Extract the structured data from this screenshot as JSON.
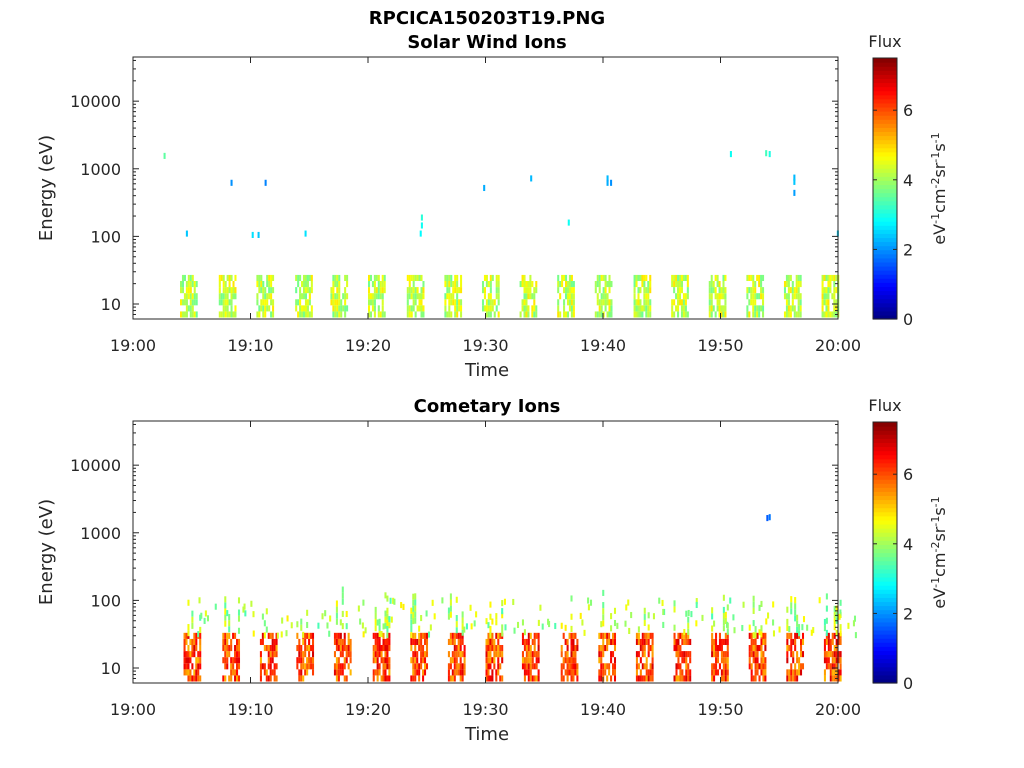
{
  "figure": {
    "main_title": "RPCICA150203T19.PNG"
  },
  "chart_data": [
    {
      "type": "heatmap",
      "title": "Solar Wind Ions",
      "xlabel": "Time",
      "ylabel": "Energy (eV)",
      "x_ticks": [
        "19:00",
        "19:10",
        "19:20",
        "19:30",
        "19:40",
        "19:50",
        "20:00"
      ],
      "xlim_minutes": [
        0,
        60
      ],
      "y_scale": "log",
      "y_ticks": [
        10,
        100,
        1000,
        10000
      ],
      "y_tick_labels": [
        "10",
        "100",
        "1000",
        "10000"
      ],
      "ylim": [
        6,
        45000
      ],
      "colorbar": {
        "label": "Flux",
        "unit_text": "eV-1cm-2sr-1s-1",
        "ticks": [
          0,
          2,
          4,
          6
        ],
        "range": [
          0,
          7.5
        ],
        "colormap": "jet"
      },
      "cells": [
        [
          2.6,
          1550,
          3.5
        ],
        [
          4.5,
          110,
          2.4
        ],
        [
          8.3,
          620,
          2.0
        ],
        [
          10.1,
          105,
          2.6
        ],
        [
          10.6,
          105,
          2.4
        ],
        [
          11.2,
          620,
          1.9
        ],
        [
          14.6,
          110,
          2.6
        ],
        [
          24.4,
          110,
          2.8
        ],
        [
          24.5,
          145,
          2.9
        ],
        [
          24.5,
          190,
          3.1
        ],
        [
          29.8,
          520,
          2.2
        ],
        [
          33.8,
          720,
          2.3
        ],
        [
          37.0,
          160,
          2.9
        ],
        [
          40.3,
          720,
          2.3
        ],
        [
          40.3,
          620,
          2.2
        ],
        [
          40.6,
          620,
          2.0
        ],
        [
          50.8,
          1650,
          2.9
        ],
        [
          53.8,
          1700,
          3.3
        ],
        [
          54.1,
          1650,
          3.0
        ],
        [
          56.2,
          740,
          2.3
        ],
        [
          56.2,
          640,
          2.4
        ],
        [
          56.2,
          440,
          2.1
        ],
        [
          59.9,
          110,
          2.5
        ]
      ],
      "bursts": [
        4.0,
        7.3,
        10.5,
        13.8,
        16.8,
        20.0,
        23.3,
        26.5,
        29.7,
        32.9,
        36.1,
        39.3,
        42.6,
        45.8,
        49.0,
        52.2,
        55.4,
        58.6
      ],
      "burst_energy_range": [
        7,
        28
      ],
      "burst_flux_range": [
        3.6,
        4.9
      ]
    },
    {
      "type": "heatmap",
      "title": "Cometary Ions",
      "xlabel": "Time",
      "ylabel": "Energy (eV)",
      "x_ticks": [
        "19:00",
        "19:10",
        "19:20",
        "19:30",
        "19:40",
        "19:50",
        "20:00"
      ],
      "xlim_minutes": [
        0,
        60
      ],
      "y_scale": "log",
      "y_ticks": [
        10,
        100,
        1000,
        10000
      ],
      "y_tick_labels": [
        "10",
        "100",
        "1000",
        "10000"
      ],
      "ylim": [
        6,
        45000
      ],
      "colorbar": {
        "label": "Flux",
        "unit_text": "eV-1cm-2sr-1s-1",
        "ticks": [
          0,
          2,
          4,
          6
        ],
        "range": [
          0,
          7.5
        ],
        "colormap": "jet"
      },
      "cells": [
        [
          53.9,
          1650,
          1.6
        ],
        [
          54.1,
          1700,
          1.8
        ]
      ],
      "bursts": [
        4.3,
        7.6,
        10.8,
        13.9,
        17.1,
        20.4,
        23.6,
        26.8,
        30.0,
        33.1,
        36.4,
        39.6,
        42.8,
        46.0,
        49.2,
        52.4,
        55.6,
        58.8
      ],
      "burst_energy_range": [
        7,
        30
      ],
      "burst_flux_range": [
        5.2,
        6.9
      ],
      "halo_energy_range": [
        30,
        160
      ],
      "halo_flux_range": [
        3.3,
        4.8
      ]
    }
  ]
}
